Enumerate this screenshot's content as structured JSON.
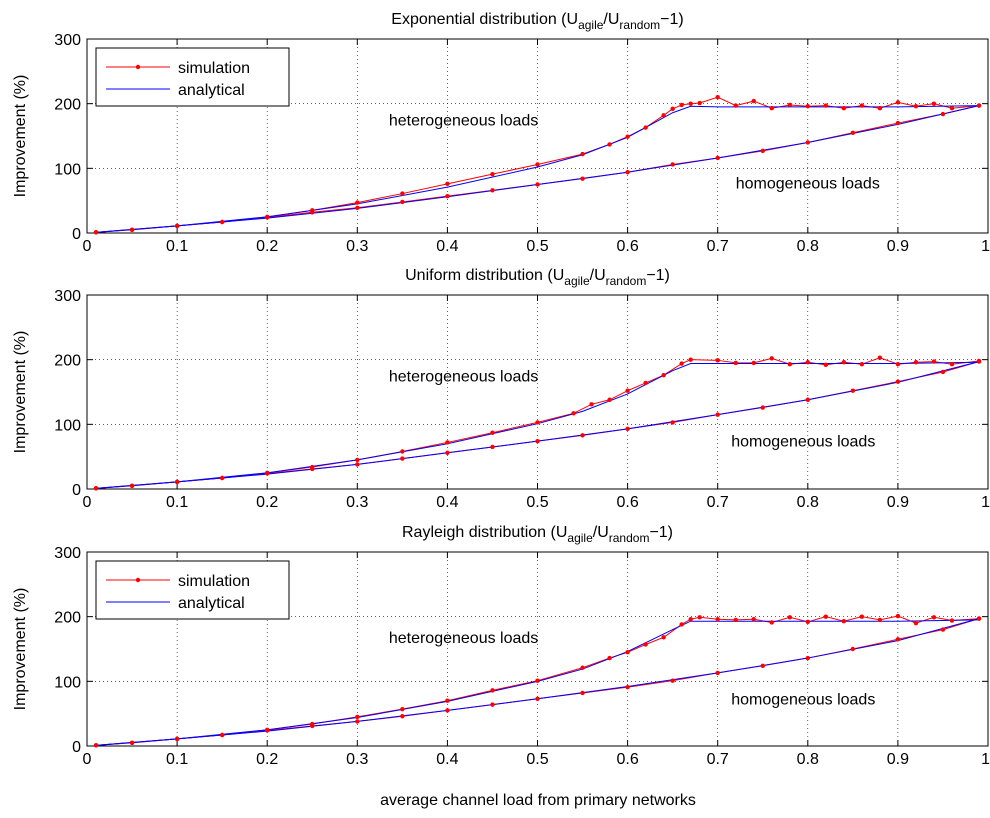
{
  "figure": {
    "xlabel": "average channel load from primary networks"
  },
  "colors": {
    "simulation": "#ff0000",
    "analytical": "#0000ff",
    "axis": "#000000",
    "grid": "#000000"
  },
  "chart_data": [
    {
      "type": "line",
      "title": {
        "base": "Exponential distribution (U",
        "sub1": "agile",
        "mid": "/U",
        "sub2": "random",
        "tail": "−1)"
      },
      "xlabel": "",
      "ylabel": "Improvement (%)",
      "xlim": [
        0,
        1
      ],
      "ylim": [
        0,
        300
      ],
      "xticks": [
        0,
        0.1,
        0.2,
        0.3,
        0.4,
        0.5,
        0.6,
        0.7,
        0.8,
        0.9,
        1
      ],
      "xtick_labels": [
        "0",
        "0.1",
        "0.2",
        "0.3",
        "0.4",
        "0.5",
        "0.6",
        "0.7",
        "0.8",
        "0.9",
        "1"
      ],
      "yticks": [
        0,
        100,
        200,
        300
      ],
      "ytick_labels": [
        "0",
        "100",
        "200",
        "300"
      ],
      "grid": true,
      "legend": {
        "show": true,
        "position": "top-left",
        "entries": [
          "simulation",
          "analytical"
        ]
      },
      "annotations": [
        {
          "text": "heterogeneous loads",
          "x": 0.335,
          "y": 166
        },
        {
          "text": "homogeneous loads",
          "x": 0.72,
          "y": 69
        }
      ],
      "series": [
        {
          "name": "simulation",
          "curve": "heterogeneous",
          "x": [
            0.01,
            0.05,
            0.1,
            0.15,
            0.2,
            0.25,
            0.3,
            0.35,
            0.4,
            0.45,
            0.5,
            0.55,
            0.58,
            0.6,
            0.62,
            0.64,
            0.65,
            0.66,
            0.67,
            0.68,
            0.7,
            0.72,
            0.74,
            0.76,
            0.78,
            0.8,
            0.82,
            0.84,
            0.86,
            0.88,
            0.9,
            0.92,
            0.94,
            0.96,
            0.99
          ],
          "y": [
            1,
            5,
            11,
            17,
            25,
            35,
            47,
            61,
            76,
            91,
            106,
            122,
            137,
            149,
            163,
            182,
            192,
            198,
            200,
            201,
            210,
            197,
            204,
            193,
            198,
            196,
            197,
            193,
            197,
            193,
            202,
            196,
            200,
            193,
            197
          ]
        },
        {
          "name": "simulation",
          "curve": "homogeneous",
          "x": [
            0.01,
            0.05,
            0.1,
            0.15,
            0.2,
            0.25,
            0.3,
            0.35,
            0.4,
            0.45,
            0.5,
            0.55,
            0.6,
            0.65,
            0.7,
            0.75,
            0.8,
            0.85,
            0.9,
            0.95,
            0.99
          ],
          "y": [
            1,
            5,
            11,
            17,
            24,
            32,
            39,
            48,
            57,
            66,
            75,
            84,
            94,
            106,
            116,
            127,
            140,
            155,
            170,
            184,
            197
          ]
        },
        {
          "name": "analytical",
          "curve": "heterogeneous",
          "x": [
            0.01,
            0.1,
            0.2,
            0.3,
            0.4,
            0.5,
            0.55,
            0.6,
            0.65,
            0.67,
            0.7,
            0.8,
            0.9,
            0.99
          ],
          "y": [
            1,
            11,
            25,
            45,
            71,
            102,
            121,
            148,
            186,
            196,
            195,
            195,
            195,
            197
          ]
        },
        {
          "name": "analytical",
          "curve": "homogeneous",
          "x": [
            0.01,
            0.1,
            0.2,
            0.3,
            0.4,
            0.5,
            0.6,
            0.7,
            0.8,
            0.9,
            0.99
          ],
          "y": [
            1,
            11,
            23,
            38,
            56,
            75,
            94,
            116,
            140,
            168,
            197
          ]
        }
      ]
    },
    {
      "type": "line",
      "title": {
        "base": "Uniform distribution (U",
        "sub1": "agile",
        "mid": "/U",
        "sub2": "random",
        "tail": "−1)"
      },
      "xlabel": "",
      "ylabel": "Improvement (%)",
      "xlim": [
        0,
        1
      ],
      "ylim": [
        0,
        300
      ],
      "xticks": [
        0,
        0.1,
        0.2,
        0.3,
        0.4,
        0.5,
        0.6,
        0.7,
        0.8,
        0.9,
        1
      ],
      "xtick_labels": [
        "0",
        "0.1",
        "0.2",
        "0.3",
        "0.4",
        "0.5",
        "0.6",
        "0.7",
        "0.8",
        "0.9",
        "1"
      ],
      "yticks": [
        0,
        100,
        200,
        300
      ],
      "ytick_labels": [
        "0",
        "100",
        "200",
        "300"
      ],
      "grid": true,
      "legend": {
        "show": false
      },
      "annotations": [
        {
          "text": "heterogeneous loads",
          "x": 0.335,
          "y": 166
        },
        {
          "text": "homogeneous loads",
          "x": 0.715,
          "y": 66
        }
      ],
      "series": [
        {
          "name": "simulation",
          "curve": "heterogeneous",
          "x": [
            0.01,
            0.05,
            0.1,
            0.15,
            0.2,
            0.25,
            0.3,
            0.35,
            0.4,
            0.45,
            0.5,
            0.54,
            0.56,
            0.58,
            0.6,
            0.62,
            0.64,
            0.66,
            0.67,
            0.7,
            0.72,
            0.74,
            0.76,
            0.78,
            0.8,
            0.82,
            0.84,
            0.86,
            0.88,
            0.9,
            0.92,
            0.94,
            0.96,
            0.99
          ],
          "y": [
            1,
            5,
            11,
            17,
            25,
            34,
            45,
            58,
            72,
            87,
            103,
            117,
            131,
            138,
            152,
            164,
            176,
            194,
            200,
            199,
            195,
            195,
            202,
            193,
            196,
            192,
            196,
            193,
            203,
            193,
            196,
            197,
            193,
            198
          ]
        },
        {
          "name": "simulation",
          "curve": "homogeneous",
          "x": [
            0.01,
            0.05,
            0.1,
            0.15,
            0.2,
            0.25,
            0.3,
            0.35,
            0.4,
            0.45,
            0.5,
            0.55,
            0.6,
            0.65,
            0.7,
            0.75,
            0.8,
            0.85,
            0.9,
            0.95,
            0.99
          ],
          "y": [
            1,
            5,
            11,
            17,
            24,
            31,
            38,
            47,
            56,
            65,
            74,
            83,
            93,
            103,
            115,
            126,
            138,
            152,
            166,
            181,
            197
          ]
        },
        {
          "name": "analytical",
          "curve": "heterogeneous",
          "x": [
            0.01,
            0.1,
            0.2,
            0.3,
            0.4,
            0.5,
            0.55,
            0.6,
            0.65,
            0.67,
            0.7,
            0.8,
            0.9,
            0.99
          ],
          "y": [
            1,
            11,
            25,
            45,
            70,
            101,
            120,
            147,
            183,
            194,
            194,
            194,
            194,
            196
          ]
        },
        {
          "name": "analytical",
          "curve": "homogeneous",
          "x": [
            0.01,
            0.1,
            0.2,
            0.3,
            0.4,
            0.5,
            0.6,
            0.7,
            0.8,
            0.9,
            0.99
          ],
          "y": [
            1,
            11,
            23,
            38,
            56,
            74,
            93,
            115,
            138,
            165,
            197
          ]
        }
      ]
    },
    {
      "type": "line",
      "title": {
        "base": "Rayleigh distribution (U",
        "sub1": "agile",
        "mid": "/U",
        "sub2": "random",
        "tail": "−1)"
      },
      "xlabel": "average channel load from primary networks",
      "ylabel": "Improvement (%)",
      "xlim": [
        0,
        1
      ],
      "ylim": [
        0,
        300
      ],
      "xticks": [
        0,
        0.1,
        0.2,
        0.3,
        0.4,
        0.5,
        0.6,
        0.7,
        0.8,
        0.9,
        1
      ],
      "xtick_labels": [
        "0",
        "0.1",
        "0.2",
        "0.3",
        "0.4",
        "0.5",
        "0.6",
        "0.7",
        "0.8",
        "0.9",
        "1"
      ],
      "yticks": [
        0,
        100,
        200,
        300
      ],
      "ytick_labels": [
        "0",
        "100",
        "200",
        "300"
      ],
      "grid": true,
      "legend": {
        "show": true,
        "position": "top-left",
        "entries": [
          "simulation",
          "analytical"
        ]
      },
      "annotations": [
        {
          "text": "heterogeneous loads",
          "x": 0.335,
          "y": 159
        },
        {
          "text": "homogeneous loads",
          "x": 0.715,
          "y": 64
        }
      ],
      "series": [
        {
          "name": "simulation",
          "curve": "heterogeneous",
          "x": [
            0.01,
            0.05,
            0.1,
            0.15,
            0.2,
            0.25,
            0.3,
            0.35,
            0.4,
            0.45,
            0.5,
            0.55,
            0.58,
            0.6,
            0.62,
            0.64,
            0.66,
            0.67,
            0.68,
            0.7,
            0.72,
            0.74,
            0.76,
            0.78,
            0.8,
            0.82,
            0.84,
            0.86,
            0.88,
            0.9,
            0.92,
            0.94,
            0.96,
            0.99
          ],
          "y": [
            1,
            5,
            11,
            17,
            25,
            34,
            45,
            57,
            70,
            86,
            101,
            121,
            136,
            145,
            157,
            168,
            188,
            196,
            199,
            196,
            195,
            196,
            191,
            199,
            192,
            200,
            193,
            200,
            195,
            201,
            190,
            199,
            194,
            197
          ]
        },
        {
          "name": "simulation",
          "curve": "homogeneous",
          "x": [
            0.01,
            0.05,
            0.1,
            0.15,
            0.2,
            0.25,
            0.3,
            0.35,
            0.4,
            0.45,
            0.5,
            0.55,
            0.6,
            0.65,
            0.7,
            0.75,
            0.8,
            0.85,
            0.9,
            0.95,
            0.99
          ],
          "y": [
            1,
            5,
            11,
            17,
            24,
            31,
            38,
            46,
            55,
            64,
            73,
            82,
            91,
            101,
            113,
            124,
            136,
            150,
            165,
            180,
            197
          ]
        },
        {
          "name": "analytical",
          "curve": "heterogeneous",
          "x": [
            0.01,
            0.1,
            0.2,
            0.3,
            0.4,
            0.5,
            0.55,
            0.6,
            0.65,
            0.67,
            0.7,
            0.8,
            0.9,
            0.99
          ],
          "y": [
            1,
            11,
            25,
            44,
            69,
            100,
            119,
            146,
            180,
            193,
            193,
            193,
            193,
            195
          ]
        },
        {
          "name": "analytical",
          "curve": "homogeneous",
          "x": [
            0.01,
            0.1,
            0.2,
            0.3,
            0.4,
            0.5,
            0.6,
            0.7,
            0.8,
            0.9,
            0.99
          ],
          "y": [
            1,
            11,
            23,
            38,
            55,
            73,
            92,
            113,
            136,
            163,
            197
          ]
        }
      ]
    }
  ]
}
